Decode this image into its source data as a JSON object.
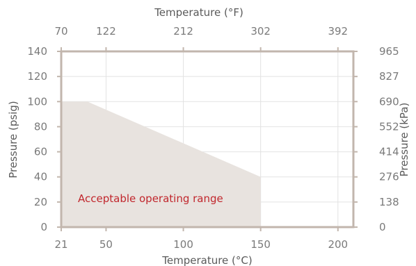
{
  "chart_data": {
    "type": "area",
    "title": "",
    "x_bottom": {
      "label": "Temperature (°C)",
      "range": [
        21,
        210
      ],
      "ticks": [
        21,
        50,
        100,
        150,
        200
      ]
    },
    "x_top": {
      "label": "Temperature (°F)",
      "ticks": [
        {
          "value_c": 21,
          "label": "70"
        },
        {
          "value_c": 50,
          "label": "122"
        },
        {
          "value_c": 100,
          "label": "212"
        },
        {
          "value_c": 150,
          "label": "302"
        },
        {
          "value_c": 200,
          "label": "392"
        }
      ]
    },
    "y_left": {
      "label": "Pressure (psig)",
      "range": [
        0,
        140
      ],
      "ticks": [
        0,
        20,
        40,
        60,
        80,
        100,
        120,
        140
      ]
    },
    "y_right": {
      "label": "Pressure (kPa)",
      "ticks": [
        {
          "value_psig": 0,
          "label": "0"
        },
        {
          "value_psig": 20,
          "label": "138"
        },
        {
          "value_psig": 40,
          "label": "276"
        },
        {
          "value_psig": 60,
          "label": "414"
        },
        {
          "value_psig": 80,
          "label": "552"
        },
        {
          "value_psig": 100,
          "label": "690"
        },
        {
          "value_psig": 120,
          "label": "827"
        },
        {
          "value_psig": 140,
          "label": "965"
        }
      ]
    },
    "region": {
      "label": "Acceptable operating range",
      "points": [
        [
          21,
          0
        ],
        [
          21,
          100
        ],
        [
          38,
          100
        ],
        [
          150,
          40
        ],
        [
          150,
          0
        ]
      ]
    },
    "grid": true,
    "colors": {
      "region_fill": "#e8e3df",
      "frame": "#c2b6ad",
      "grid": "#e2e2e2",
      "annotation": "#c1272d"
    }
  }
}
